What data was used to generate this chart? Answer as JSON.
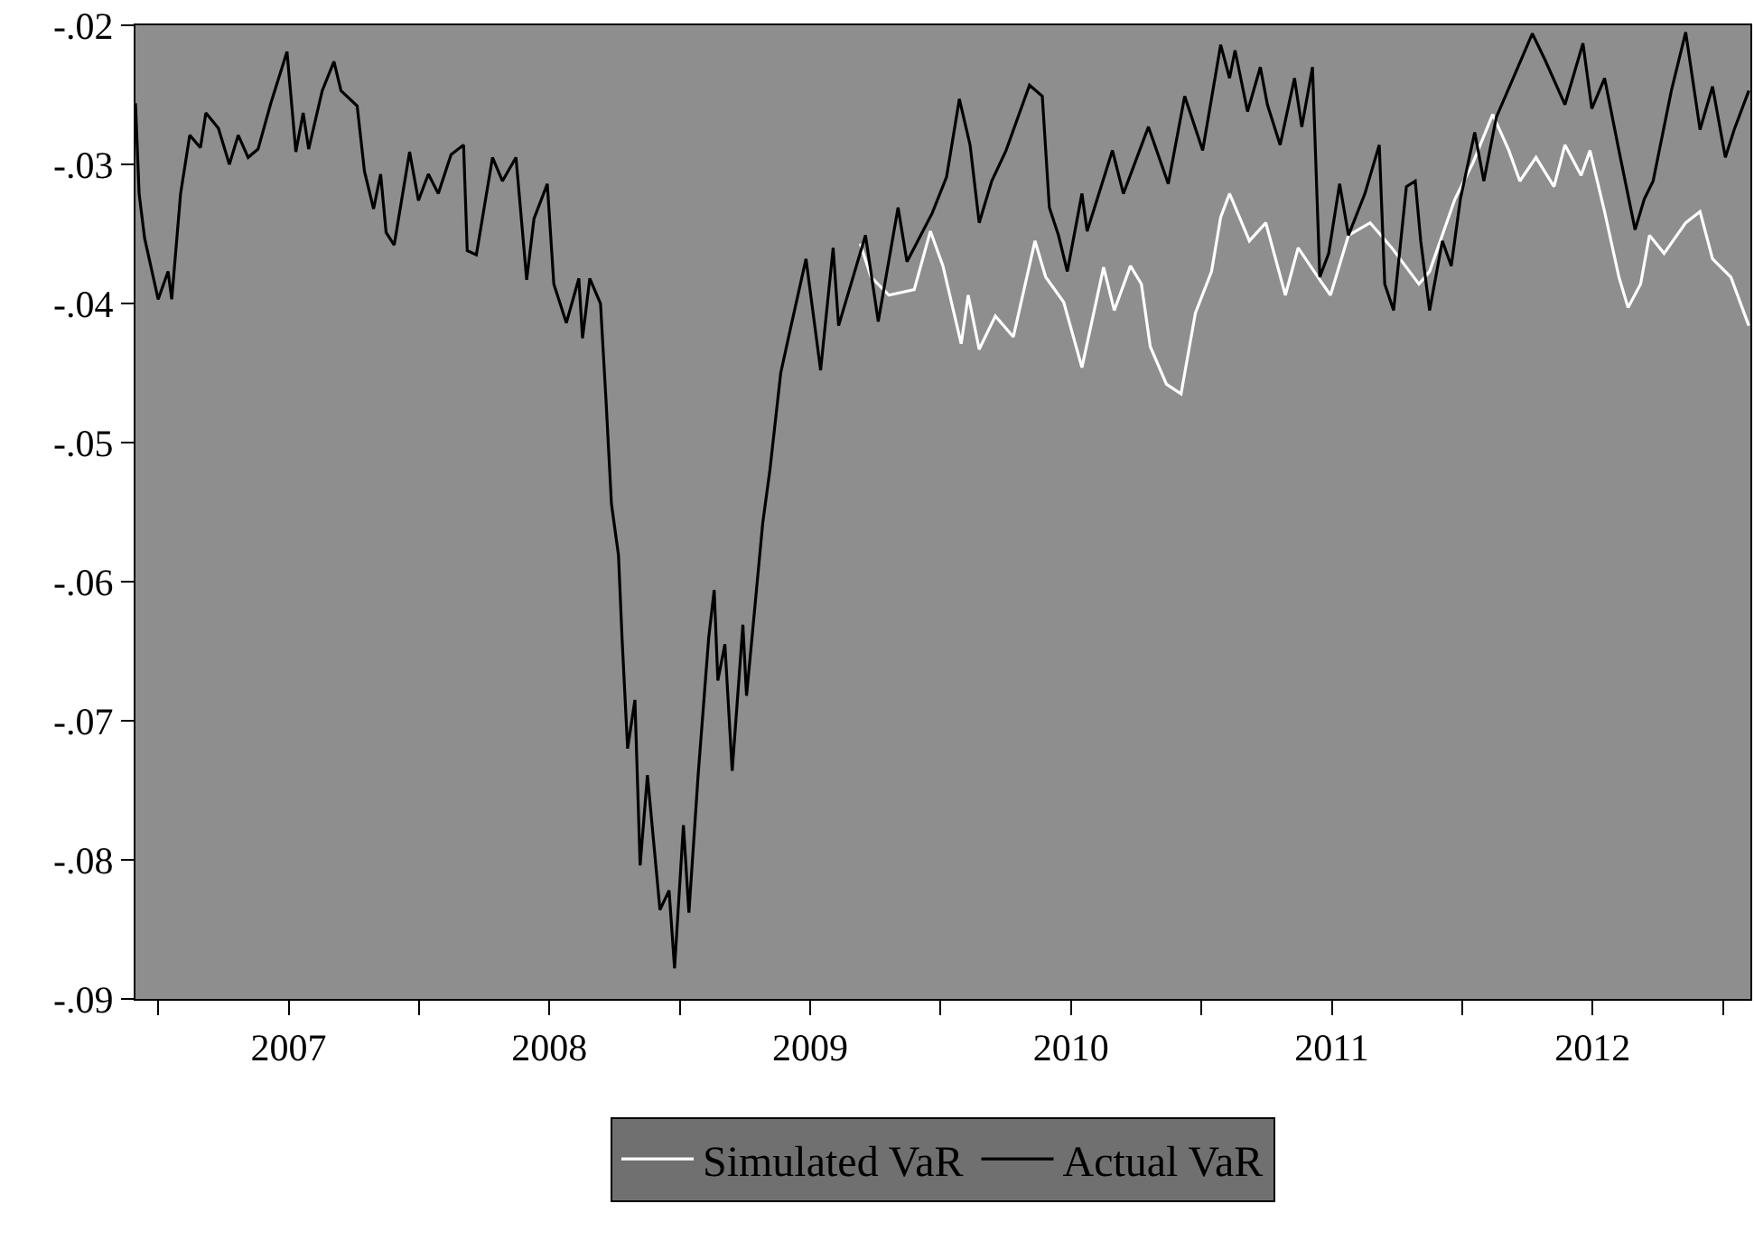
{
  "chart_data": {
    "type": "line",
    "series": [
      {
        "name": "Simulated VaR",
        "color": "#ffffff",
        "x": [
          2009.692,
          2009.733,
          2009.802,
          2009.899,
          2009.961,
          2010.009,
          2010.079,
          2010.106,
          2010.148,
          2010.21,
          2010.279,
          2010.362,
          2010.403,
          2010.472,
          2010.542,
          2010.625,
          2010.666,
          2010.728,
          2010.77,
          2010.804,
          2010.866,
          2010.922,
          2010.977,
          2011.039,
          2011.074,
          2011.108,
          2011.184,
          2011.247,
          2011.322,
          2011.371,
          2011.454,
          2011.495,
          2011.564,
          2011.647,
          2011.73,
          2011.834,
          2011.875,
          2011.972,
          2012.041,
          2012.117,
          2012.179,
          2012.221,
          2012.283,
          2012.352,
          2012.394,
          2012.456,
          2012.49,
          2012.546,
          2012.601,
          2012.636,
          2012.684,
          2012.718,
          2012.774,
          2012.857,
          2012.912,
          2012.96,
          2013.03,
          2013.099
        ],
        "values": [
          -0.0357,
          -0.0381,
          -0.0394,
          -0.039,
          -0.0348,
          -0.0373,
          -0.0429,
          -0.0394,
          -0.0433,
          -0.0409,
          -0.0424,
          -0.0355,
          -0.0381,
          -0.0399,
          -0.0446,
          -0.0374,
          -0.0405,
          -0.0373,
          -0.0386,
          -0.0431,
          -0.0458,
          -0.0465,
          -0.0407,
          -0.0377,
          -0.0338,
          -0.0321,
          -0.0355,
          -0.0342,
          -0.0394,
          -0.036,
          -0.0383,
          -0.0394,
          -0.0351,
          -0.0342,
          -0.036,
          -0.0386,
          -0.0377,
          -0.0325,
          -0.0299,
          -0.0264,
          -0.029,
          -0.0312,
          -0.0295,
          -0.0316,
          -0.0286,
          -0.0308,
          -0.029,
          -0.0334,
          -0.0381,
          -0.0403,
          -0.0386,
          -0.0351,
          -0.0364,
          -0.0342,
          -0.0334,
          -0.0368,
          -0.0381,
          -0.0416
        ]
      },
      {
        "name": "Actual VaR",
        "color": "#000000",
        "x": [
          2006.913,
          2006.927,
          2006.948,
          2007.0,
          2007.038,
          2007.052,
          2007.086,
          2007.121,
          2007.162,
          2007.183,
          2007.231,
          2007.273,
          2007.307,
          2007.345,
          2007.383,
          2007.432,
          2007.494,
          2007.528,
          2007.556,
          2007.577,
          2007.629,
          2007.674,
          2007.701,
          2007.763,
          2007.791,
          2007.826,
          2007.853,
          2007.874,
          2007.905,
          2007.964,
          2007.998,
          2008.036,
          2008.074,
          2008.123,
          2008.171,
          2008.185,
          2008.22,
          2008.282,
          2008.32,
          2008.372,
          2008.413,
          2008.441,
          2008.492,
          2008.517,
          2008.565,
          2008.613,
          2008.627,
          2008.655,
          2008.696,
          2008.717,
          2008.738,
          2008.765,
          2008.779,
          2008.8,
          2008.828,
          2008.848,
          2008.876,
          2008.924,
          2008.959,
          2008.98,
          2009.014,
          2009.035,
          2009.07,
          2009.111,
          2009.132,
          2009.146,
          2009.173,
          2009.201,
          2009.242,
          2009.256,
          2009.318,
          2009.346,
          2009.387,
          2009.422,
          2009.484,
          2009.54,
          2009.588,
          2009.609,
          2009.712,
          2009.761,
          2009.837,
          2009.871,
          2009.968,
          2010.023,
          2010.072,
          2010.113,
          2010.148,
          2010.196,
          2010.251,
          2010.341,
          2010.39,
          2010.417,
          2010.452,
          2010.486,
          2010.542,
          2010.562,
          2010.659,
          2010.701,
          2010.797,
          2010.873,
          2010.936,
          2011.005,
          2011.074,
          2011.108,
          2011.129,
          2011.177,
          2011.226,
          2011.253,
          2011.302,
          2011.357,
          2011.385,
          2011.426,
          2011.454,
          2011.488,
          2011.53,
          2011.564,
          2011.627,
          2011.682,
          2011.703,
          2011.737,
          2011.786,
          2011.82,
          2011.841,
          2011.875,
          2011.924,
          2011.958,
          2011.993,
          2012.048,
          2012.083,
          2012.131,
          2012.214,
          2012.269,
          2012.318,
          2012.394,
          2012.463,
          2012.497,
          2012.546,
          2012.601,
          2012.663,
          2012.698,
          2012.732,
          2012.802,
          2012.857,
          2012.912,
          2012.96,
          2013.009,
          2013.043,
          2013.099
        ],
        "values": [
          -0.0256,
          -0.0321,
          -0.0353,
          -0.0397,
          -0.0377,
          -0.0397,
          -0.0321,
          -0.0279,
          -0.0288,
          -0.0263,
          -0.0274,
          -0.03,
          -0.0279,
          -0.0295,
          -0.0289,
          -0.0256,
          -0.0219,
          -0.0291,
          -0.0263,
          -0.0289,
          -0.0247,
          -0.0226,
          -0.0247,
          -0.0258,
          -0.0305,
          -0.0332,
          -0.0307,
          -0.0349,
          -0.0358,
          -0.0291,
          -0.0326,
          -0.0307,
          -0.0321,
          -0.0293,
          -0.0286,
          -0.0362,
          -0.0365,
          -0.0295,
          -0.0312,
          -0.0295,
          -0.0383,
          -0.0339,
          -0.0314,
          -0.0386,
          -0.0414,
          -0.0382,
          -0.0425,
          -0.0382,
          -0.04,
          -0.0469,
          -0.0544,
          -0.0581,
          -0.0642,
          -0.072,
          -0.0685,
          -0.0804,
          -0.0739,
          -0.0836,
          -0.0822,
          -0.0878,
          -0.0775,
          -0.0838,
          -0.074,
          -0.064,
          -0.0606,
          -0.0671,
          -0.0645,
          -0.0736,
          -0.0631,
          -0.0682,
          -0.0558,
          -0.0519,
          -0.045,
          -0.042,
          -0.0368,
          -0.0448,
          -0.036,
          -0.0416,
          -0.0351,
          -0.0413,
          -0.0331,
          -0.037,
          -0.0335,
          -0.0309,
          -0.0253,
          -0.0286,
          -0.0342,
          -0.0312,
          -0.029,
          -0.0243,
          -0.0251,
          -0.0331,
          -0.0351,
          -0.0377,
          -0.0321,
          -0.0348,
          -0.029,
          -0.0321,
          -0.0273,
          -0.0314,
          -0.0251,
          -0.029,
          -0.0214,
          -0.0238,
          -0.0218,
          -0.0262,
          -0.023,
          -0.0257,
          -0.0286,
          -0.0238,
          -0.0273,
          -0.023,
          -0.0381,
          -0.0364,
          -0.0314,
          -0.0351,
          -0.0321,
          -0.0286,
          -0.0386,
          -0.0405,
          -0.0316,
          -0.0312,
          -0.0355,
          -0.0405,
          -0.0355,
          -0.0373,
          -0.0325,
          -0.0277,
          -0.0312,
          -0.0266,
          -0.023,
          -0.0206,
          -0.0225,
          -0.0257,
          -0.0213,
          -0.026,
          -0.0238,
          -0.029,
          -0.0347,
          -0.0325,
          -0.0312,
          -0.0247,
          -0.0205,
          -0.0275,
          -0.0244,
          -0.0295,
          -0.0275,
          -0.0247
        ]
      }
    ],
    "xlim": [
      2006.913,
      2013.105
    ],
    "xticks": [
      {
        "value": 2007,
        "label": null
      },
      {
        "value": 2007.5,
        "label": "2007"
      },
      {
        "value": 2008,
        "label": null
      },
      {
        "value": 2008.5,
        "label": "2008"
      },
      {
        "value": 2009,
        "label": null
      },
      {
        "value": 2009.5,
        "label": "2009"
      },
      {
        "value": 2010,
        "label": null
      },
      {
        "value": 2010.5,
        "label": "2010"
      },
      {
        "value": 2011,
        "label": null
      },
      {
        "value": 2011.5,
        "label": "2011"
      },
      {
        "value": 2012,
        "label": null
      },
      {
        "value": 2012.5,
        "label": "2012"
      },
      {
        "value": 2013,
        "label": null
      }
    ],
    "ylim": [
      -0.09,
      -0.02
    ],
    "yticks": [
      {
        "value": -0.09,
        "label": "-.09"
      },
      {
        "value": -0.08,
        "label": "-.08"
      },
      {
        "value": -0.07,
        "label": "-.07"
      },
      {
        "value": -0.06,
        "label": "-.06"
      },
      {
        "value": -0.05,
        "label": "-.05"
      },
      {
        "value": -0.04,
        "label": "-.04"
      },
      {
        "value": -0.03,
        "label": "-.03"
      },
      {
        "value": -0.02,
        "label": "-.02"
      }
    ],
    "grid": false,
    "legend": "bottom",
    "line_style": "solid",
    "marker": "none"
  }
}
